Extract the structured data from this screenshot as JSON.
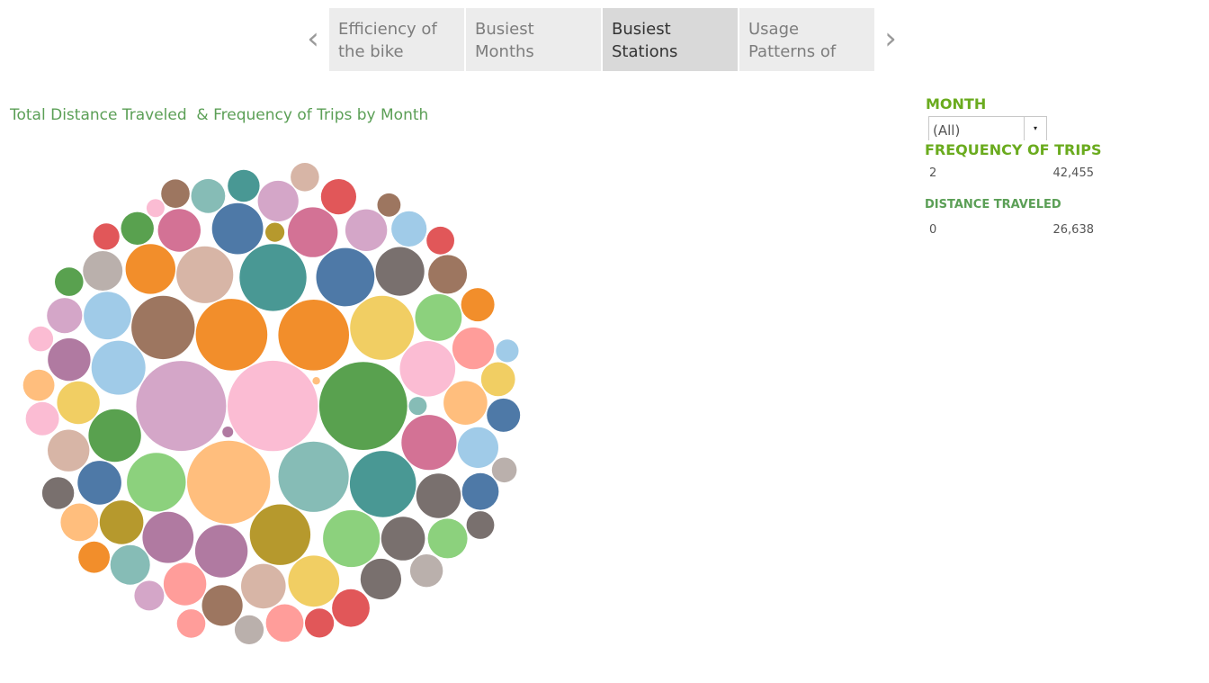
{
  "tabs": {
    "prev_icon": "chevron-left-icon",
    "next_icon": "chevron-right-icon",
    "prev_glyph": "‹",
    "next_glyph": "›",
    "items": [
      {
        "label": "Efficiency of the bike",
        "active": false
      },
      {
        "label": "Busiest Months",
        "active": false
      },
      {
        "label": "Busiest Stations",
        "active": true
      },
      {
        "label": "Usage Patterns of",
        "active": false
      }
    ]
  },
  "chart_title": "Total Distance Traveled  & Frequency of Trips by Month",
  "filters": {
    "month_title": "MONTH",
    "month_value": "(All)",
    "caret_glyph": "▾"
  },
  "legend": {
    "frequency_title": "FREQUENCY OF TRIPS",
    "frequency_min": "2",
    "frequency_max": "42,455",
    "distance_title": "DISTANCE TRAVELED",
    "distance_min": "0",
    "distance_max": "26,638"
  },
  "colors": {
    "title_green": "#5b9f56",
    "filter_green": "#6aab1e",
    "tab_bg": "#ececec",
    "tab_active_bg": "#d9d9d9"
  },
  "chart_data": {
    "type": "packed-bubble",
    "title": "Total Distance Traveled  & Frequency of Trips by Month",
    "size_encoding": "Frequency of Trips",
    "size_range": [
      2,
      42455
    ],
    "distance_range": [
      0,
      26638
    ],
    "palette": {
      "orange": "#f28e2b",
      "lightpink": "#fbbcd3",
      "lightorange": "#ffbe7d",
      "green": "#59a14f",
      "lightgreen": "#8cd17d",
      "teal": "#499894",
      "lightteal": "#86bcb6",
      "blue": "#4e79a7",
      "lightblue": "#a0cbe8",
      "yellow": "#f1ce63",
      "olive": "#b6992d",
      "red": "#e15759",
      "salmon": "#ff9d9a",
      "gray": "#79706e",
      "lightgray": "#bab0ac",
      "pink": "#d37295",
      "purple": "#b07aa1",
      "lilac": "#d4a6c8",
      "brown": "#9d7660",
      "tan": "#d7b5a6"
    },
    "bubbles": [
      {
        "c": "lightpink",
        "v": 42455
      },
      {
        "c": "lilac",
        "v": 42200
      },
      {
        "c": "lightorange",
        "v": 36000
      },
      {
        "c": "green",
        "v": 40400
      },
      {
        "c": "lightteal",
        "v": 25800
      },
      {
        "c": "orange",
        "v": 26700
      },
      {
        "c": "orange",
        "v": 26100
      },
      {
        "c": "yellow",
        "v": 21400
      },
      {
        "c": "teal",
        "v": 23300
      },
      {
        "c": "brown",
        "v": 20900
      },
      {
        "c": "teal",
        "v": 22900
      },
      {
        "c": "olive",
        "v": 19200
      },
      {
        "c": "blue",
        "v": 17700
      },
      {
        "c": "tan",
        "v": 16800
      },
      {
        "c": "lightgreen",
        "v": 18000
      },
      {
        "c": "lightblue",
        "v": 15200
      },
      {
        "c": "lightgreen",
        "v": 16800
      },
      {
        "c": "pink",
        "v": 15800
      },
      {
        "c": "purple",
        "v": 14400
      },
      {
        "c": "pink",
        "v": 12900
      },
      {
        "c": "lightpink",
        "v": 16000
      },
      {
        "c": "green",
        "v": 14400
      },
      {
        "c": "gray",
        "v": 12400
      },
      {
        "c": "orange",
        "v": 12900
      },
      {
        "c": "purple",
        "v": 13600
      },
      {
        "c": "yellow",
        "v": 13600
      },
      {
        "c": "blue",
        "v": 13600
      },
      {
        "c": "lightblue",
        "v": 11800
      },
      {
        "c": "lightgreen",
        "v": 11300
      },
      {
        "c": "tan",
        "v": 10400
      },
      {
        "c": "gray",
        "v": 10400
      },
      {
        "c": "gray",
        "v": 10000
      },
      {
        "c": "blue",
        "v": 10000
      },
      {
        "c": "lilac",
        "v": 9100
      },
      {
        "c": "lightorange",
        "v": 10000
      },
      {
        "c": "lightteal",
        "v": 8200
      },
      {
        "c": "olive",
        "v": 10000
      },
      {
        "c": "tan",
        "v": 9100
      },
      {
        "c": "lightgray",
        "v": 8200
      },
      {
        "c": "lightgreen",
        "v": 8200
      },
      {
        "c": "yellow",
        "v": 9500
      },
      {
        "c": "salmon",
        "v": 9500
      },
      {
        "c": "salmon",
        "v": 9100
      },
      {
        "c": "lightblue",
        "v": 8600
      },
      {
        "c": "gray",
        "v": 8600
      },
      {
        "c": "lilac",
        "v": 8600
      },
      {
        "c": "pink",
        "v": 9500
      },
      {
        "c": "purple",
        "v": 9500
      },
      {
        "c": "brown",
        "v": 8600
      },
      {
        "c": "brown",
        "v": 7800
      },
      {
        "c": "red",
        "v": 7400
      },
      {
        "c": "salmon",
        "v": 7400
      },
      {
        "c": "lightorange",
        "v": 7400
      },
      {
        "c": "blue",
        "v": 7000
      },
      {
        "c": "lilac",
        "v": 6500
      },
      {
        "c": "red",
        "v": 6500
      },
      {
        "c": "yellow",
        "v": 6000
      },
      {
        "c": "lightblue",
        "v": 6500
      },
      {
        "c": "lightteal",
        "v": 6000
      },
      {
        "c": "lightpink",
        "v": 5800
      },
      {
        "c": "blue",
        "v": 5800
      },
      {
        "c": "teal",
        "v": 5300
      },
      {
        "c": "orange",
        "v": 5800
      },
      {
        "c": "green",
        "v": 5600
      },
      {
        "c": "lightgray",
        "v": 5600
      },
      {
        "c": "lightorange",
        "v": 5100
      },
      {
        "c": "gray",
        "v": 5300
      },
      {
        "c": "lilac",
        "v": 4600
      },
      {
        "c": "red",
        "v": 4400
      },
      {
        "c": "lightgray",
        "v": 4400
      },
      {
        "c": "green",
        "v": 4200
      },
      {
        "c": "orange",
        "v": 5100
      },
      {
        "c": "tan",
        "v": 4200
      },
      {
        "c": "salmon",
        "v": 4200
      },
      {
        "c": "brown",
        "v": 4200
      },
      {
        "c": "red",
        "v": 4000
      },
      {
        "c": "red",
        "v": 3600
      },
      {
        "c": "lightgray",
        "v": 3200
      },
      {
        "c": "lightblue",
        "v": 2700
      },
      {
        "c": "lightpink",
        "v": 3200
      },
      {
        "c": "olive",
        "v": 1900
      },
      {
        "c": "lightteal",
        "v": 1700
      },
      {
        "c": "brown",
        "v": 2800
      },
      {
        "c": "lightpink",
        "v": 1700
      },
      {
        "c": "purple",
        "v": 600
      },
      {
        "c": "lightorange",
        "v": 300
      },
      {
        "c": "gray",
        "v": 4000
      }
    ]
  }
}
